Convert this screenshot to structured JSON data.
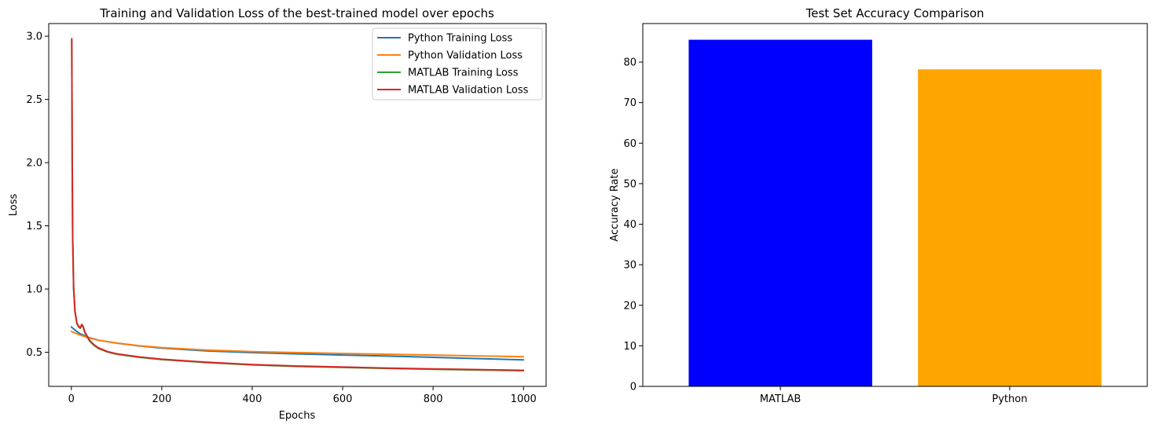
{
  "chart_data": [
    {
      "type": "line",
      "title": "Training and Validation Loss of the best-trained model over epochs",
      "xlabel": "Epochs",
      "ylabel": "Loss",
      "xlim": [
        -50,
        1050
      ],
      "ylim": [
        0.23,
        3.1
      ],
      "xticks": [
        0,
        200,
        400,
        600,
        800,
        1000
      ],
      "yticks": [
        0.5,
        1.0,
        1.5,
        2.0,
        2.5,
        3.0
      ],
      "xtick_labels": [
        "0",
        "200",
        "400",
        "600",
        "800",
        "1000"
      ],
      "ytick_labels": [
        "0.5",
        "1.0",
        "1.5",
        "2.0",
        "2.5",
        "3.0"
      ],
      "grid": false,
      "legend_position": "top-right",
      "series": [
        {
          "name": "Python Training Loss",
          "color": "#1f77b4",
          "x": [
            0,
            10,
            20,
            40,
            60,
            100,
            150,
            200,
            300,
            400,
            500,
            600,
            700,
            800,
            900,
            1000
          ],
          "y": [
            0.7,
            0.67,
            0.645,
            0.615,
            0.595,
            0.572,
            0.55,
            0.533,
            0.51,
            0.497,
            0.487,
            0.478,
            0.47,
            0.46,
            0.45,
            0.44
          ]
        },
        {
          "name": "Python Validation Loss",
          "color": "#ff7f0e",
          "x": [
            0,
            10,
            20,
            40,
            60,
            100,
            150,
            200,
            300,
            400,
            500,
            600,
            700,
            800,
            900,
            1000
          ],
          "y": [
            0.665,
            0.65,
            0.635,
            0.612,
            0.595,
            0.573,
            0.552,
            0.537,
            0.517,
            0.505,
            0.497,
            0.49,
            0.484,
            0.478,
            0.471,
            0.465
          ]
        },
        {
          "name": "MATLAB Training Loss",
          "color": "#2ca02c",
          "x": [
            1,
            2,
            3,
            5,
            8,
            12,
            16,
            20,
            23,
            26,
            30,
            40,
            50,
            60,
            80,
            100,
            150,
            200,
            300,
            400,
            500,
            600,
            700,
            800,
            900,
            1000
          ],
          "y": [
            2.97,
            2.0,
            1.4,
            1.0,
            0.82,
            0.73,
            0.7,
            0.69,
            0.715,
            0.7,
            0.655,
            0.59,
            0.555,
            0.53,
            0.502,
            0.485,
            0.46,
            0.442,
            0.418,
            0.4,
            0.388,
            0.38,
            0.372,
            0.365,
            0.36,
            0.354
          ]
        },
        {
          "name": "MATLAB Validation Loss",
          "color": "#d62728",
          "x": [
            1,
            2,
            3,
            5,
            8,
            12,
            16,
            20,
            23,
            26,
            30,
            40,
            50,
            60,
            80,
            100,
            150,
            200,
            300,
            400,
            500,
            600,
            700,
            800,
            900,
            1000
          ],
          "y": [
            2.98,
            2.01,
            1.41,
            1.01,
            0.825,
            0.735,
            0.705,
            0.695,
            0.72,
            0.705,
            0.66,
            0.595,
            0.56,
            0.535,
            0.505,
            0.488,
            0.463,
            0.445,
            0.421,
            0.403,
            0.391,
            0.383,
            0.375,
            0.368,
            0.363,
            0.357
          ]
        }
      ]
    },
    {
      "type": "bar",
      "title": "Test Set Accuracy Comparison",
      "xlabel": "",
      "ylabel": "Accuracy Rate",
      "ylim": [
        0,
        89.5
      ],
      "yticks": [
        0,
        10,
        20,
        30,
        40,
        50,
        60,
        70,
        80
      ],
      "ytick_labels": [
        "0",
        "10",
        "20",
        "30",
        "40",
        "50",
        "60",
        "70",
        "80"
      ],
      "grid": false,
      "categories": [
        "MATLAB",
        "Python"
      ],
      "values": [
        85.5,
        78.2
      ],
      "colors": [
        "#0000ff",
        "#ffa500"
      ]
    }
  ]
}
